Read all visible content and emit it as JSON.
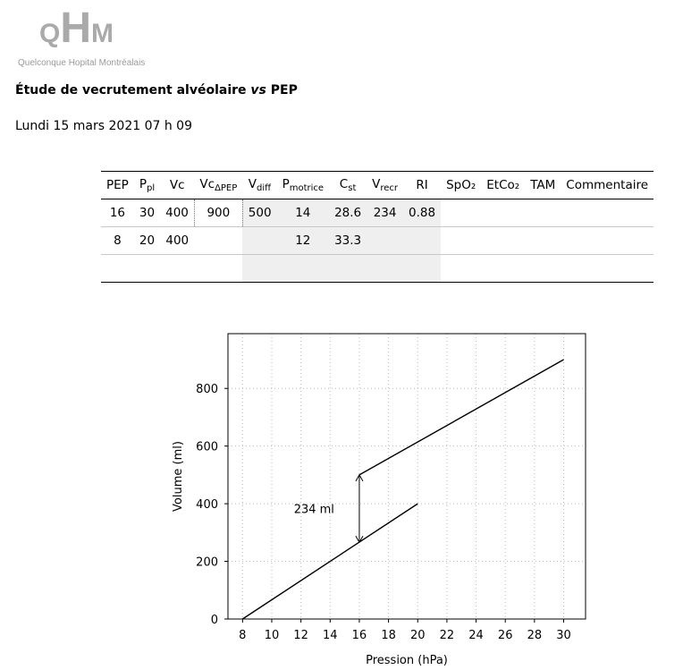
{
  "logo": {
    "letters": "QHM",
    "q": "Q",
    "h": "H",
    "m": "M",
    "subtitle": "Quelconque Hopital Montréalais"
  },
  "title": {
    "main": "Étude de vecrutement alvéolaire ",
    "vs": "vs",
    "tail": " PEP"
  },
  "date": "Lundi 15 mars 2021 07 h 09",
  "table": {
    "headers": {
      "pep": "PEP",
      "ppl": "P",
      "ppl_sub": "pl",
      "vc": "Vc",
      "vcdpep": "Vc",
      "vcdpep_sub": "ΔPEP",
      "vdiff": "V",
      "vdiff_sub": "diff",
      "pmotrice": "P",
      "pmotrice_sub": "motrice",
      "cst": "C",
      "cst_sub": "st",
      "vrecr": "V",
      "vrecr_sub": "recr",
      "ri": "RI",
      "spo2": "SpO₂",
      "etco2": "EtCo₂",
      "tam": "TAM",
      "commentaire": "Commentaire"
    },
    "rows": [
      {
        "pep": "16",
        "ppl": "30",
        "vc": "400",
        "vcdpep": "900",
        "vdiff": "500",
        "pmotrice": "14",
        "cst": "28.6",
        "vrecr": "234",
        "ri": "0.88",
        "spo2": "",
        "etco2": "",
        "tam": "",
        "commentaire": ""
      },
      {
        "pep": "8",
        "ppl": "20",
        "vc": "400",
        "vcdpep": "",
        "vdiff": "",
        "pmotrice": "12",
        "cst": "33.3",
        "vrecr": "",
        "ri": "",
        "spo2": "",
        "etco2": "",
        "tam": "",
        "commentaire": ""
      },
      {
        "pep": "",
        "ppl": "",
        "vc": "",
        "vcdpep": "",
        "vdiff": "",
        "pmotrice": "",
        "cst": "",
        "vrecr": "",
        "ri": "",
        "spo2": "",
        "etco2": "",
        "tam": "",
        "commentaire": ""
      }
    ]
  },
  "chart_data": {
    "type": "line",
    "xlabel": "Pression (hPa)",
    "ylabel": "Volume (ml)",
    "xlim": [
      7,
      31.5
    ],
    "ylim": [
      0,
      990
    ],
    "xticks": [
      "8",
      "10",
      "12",
      "14",
      "16",
      "18",
      "20",
      "22",
      "24",
      "26",
      "28",
      "30"
    ],
    "yticks": [
      "0",
      "200",
      "400",
      "600",
      "800"
    ],
    "grid": true,
    "series": [
      {
        "x": [
          8,
          20
        ],
        "y": [
          0,
          400
        ]
      },
      {
        "x": [
          16,
          30
        ],
        "y": [
          500,
          900
        ]
      }
    ],
    "annotation": {
      "text": "234 ml",
      "x": 16,
      "y_from": 266,
      "y_to": 500
    }
  }
}
